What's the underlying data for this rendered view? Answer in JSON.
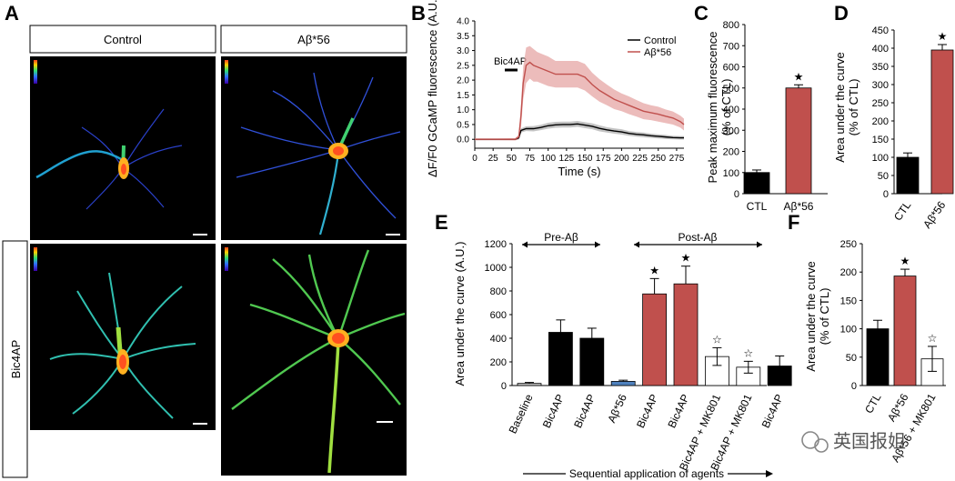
{
  "figure": {
    "panel_letters": [
      "A",
      "B",
      "C",
      "D",
      "E",
      "F"
    ],
    "panel_a": {
      "column_labels": [
        "Control",
        "Aβ*56"
      ],
      "row_label": "Bic4AP"
    },
    "watermark": "英国报姐"
  },
  "chart_data": [
    {
      "panel": "B",
      "type": "line",
      "xlabel": "Time (s)",
      "ylabel": "ΔF/F0 GCaMP fluorescence (A.U.)",
      "x_ticks": [
        0,
        25,
        50,
        75,
        100,
        125,
        150,
        175,
        200,
        225,
        250,
        275
      ],
      "y_ticks": [
        0,
        0.5,
        1.0,
        1.5,
        2.0,
        2.5,
        3.0,
        3.5,
        4.0
      ],
      "xlim": [
        0,
        285
      ],
      "ylim": [
        -0.3,
        4.0
      ],
      "annotation": "Bic4AP",
      "annotation_bar": [
        40,
        55
      ],
      "legend": "top-right",
      "series": [
        {
          "name": "Control",
          "color": "#000000",
          "x": [
            0,
            30,
            55,
            60,
            63,
            70,
            80,
            90,
            100,
            110,
            120,
            130,
            140,
            150,
            160,
            170,
            180,
            190,
            200,
            210,
            220,
            230,
            240,
            250,
            260,
            270,
            280,
            285
          ],
          "y": [
            0,
            0,
            0,
            0.05,
            0.3,
            0.36,
            0.36,
            0.4,
            0.46,
            0.49,
            0.5,
            0.5,
            0.52,
            0.48,
            0.44,
            0.37,
            0.32,
            0.28,
            0.25,
            0.2,
            0.17,
            0.15,
            0.12,
            0.1,
            0.08,
            0.06,
            0.05,
            0.05
          ],
          "err": [
            0.03,
            0.03,
            0.03,
            0.05,
            0.07,
            0.08,
            0.09,
            0.09,
            0.1,
            0.1,
            0.1,
            0.1,
            0.1,
            0.1,
            0.1,
            0.1,
            0.09,
            0.09,
            0.09,
            0.08,
            0.08,
            0.08,
            0.07,
            0.07,
            0.07,
            0.06,
            0.06,
            0.06
          ]
        },
        {
          "name": "Aβ*56",
          "color": "#c0504d",
          "x": [
            0,
            30,
            55,
            60,
            63,
            66,
            70,
            75,
            80,
            85,
            90,
            100,
            110,
            120,
            130,
            140,
            150,
            160,
            170,
            180,
            190,
            200,
            210,
            220,
            230,
            240,
            250,
            260,
            270,
            280,
            285
          ],
          "y": [
            0,
            0,
            0,
            0.08,
            0.8,
            1.9,
            2.5,
            2.6,
            2.5,
            2.45,
            2.4,
            2.3,
            2.2,
            2.2,
            2.2,
            2.2,
            2.1,
            1.85,
            1.65,
            1.5,
            1.35,
            1.25,
            1.15,
            1.05,
            0.95,
            0.9,
            0.85,
            0.78,
            0.72,
            0.6,
            0.5
          ],
          "err": [
            0.03,
            0.03,
            0.04,
            0.08,
            0.4,
            0.55,
            0.6,
            0.55,
            0.55,
            0.5,
            0.5,
            0.5,
            0.45,
            0.45,
            0.45,
            0.45,
            0.45,
            0.4,
            0.38,
            0.35,
            0.33,
            0.3,
            0.3,
            0.28,
            0.27,
            0.25,
            0.25,
            0.23,
            0.22,
            0.2,
            0.2
          ]
        }
      ]
    },
    {
      "panel": "C",
      "type": "bar",
      "ylabel": "Peak maximum fluorescence (% of CTL)",
      "categories": [
        "CTL",
        "Aβ*56"
      ],
      "values": [
        100,
        500
      ],
      "errors": [
        12,
        15
      ],
      "colors": [
        "#000000",
        "#c0504d"
      ],
      "significance": [
        "",
        "★"
      ],
      "y_ticks": [
        0,
        100,
        200,
        300,
        400,
        500,
        600,
        700,
        800
      ],
      "ylim": [
        0,
        800
      ]
    },
    {
      "panel": "D",
      "type": "bar",
      "ylabel": "Area under the curve (% of CTL)",
      "categories": [
        "CTL",
        "Aβ*56"
      ],
      "values": [
        100,
        395
      ],
      "errors": [
        12,
        15
      ],
      "colors": [
        "#000000",
        "#c0504d"
      ],
      "significance": [
        "",
        "★"
      ],
      "y_ticks": [
        0,
        50,
        100,
        150,
        200,
        250,
        300,
        350,
        400,
        450
      ],
      "ylim": [
        0,
        450
      ]
    },
    {
      "panel": "E",
      "type": "bar",
      "ylabel": "Area under the curve (A.U.)",
      "xlabel": "Sequential application of agents",
      "categories": [
        "Baseline",
        "Bic4AP",
        "Bic4AP",
        "Aβ*56",
        "Bic4AP",
        "Bic4AP",
        "Bic4AP + MK801",
        "Bic4AP + MK801",
        "Bic4AP"
      ],
      "values": [
        18,
        450,
        400,
        35,
        775,
        860,
        245,
        155,
        165
      ],
      "errors": [
        8,
        105,
        85,
        10,
        130,
        150,
        75,
        50,
        85
      ],
      "colors": [
        "#bfbfbf",
        "#000000",
        "#000000",
        "#4f81bd",
        "#c0504d",
        "#c0504d",
        "#ffffff",
        "#ffffff",
        "#000000"
      ],
      "significance": [
        "",
        "",
        "",
        "",
        "★",
        "★",
        "☆",
        "☆",
        ""
      ],
      "group_labels": [
        "Pre-Aβ",
        "Post-Aβ"
      ],
      "y_ticks": [
        0,
        200,
        400,
        600,
        800,
        1000,
        1200
      ],
      "ylim": [
        0,
        1200
      ]
    },
    {
      "panel": "F",
      "type": "bar",
      "ylabel": "Area under the curve (% of CTL)",
      "categories": [
        "CTL",
        "Aβ*56",
        "Aβ*56 + MK801"
      ],
      "values": [
        100,
        193,
        47
      ],
      "errors": [
        15,
        12,
        22
      ],
      "colors": [
        "#000000",
        "#c0504d",
        "#ffffff"
      ],
      "significance": [
        "",
        "★",
        "☆"
      ],
      "y_ticks": [
        0,
        50,
        100,
        150,
        200,
        250
      ],
      "ylim": [
        0,
        250
      ]
    }
  ]
}
